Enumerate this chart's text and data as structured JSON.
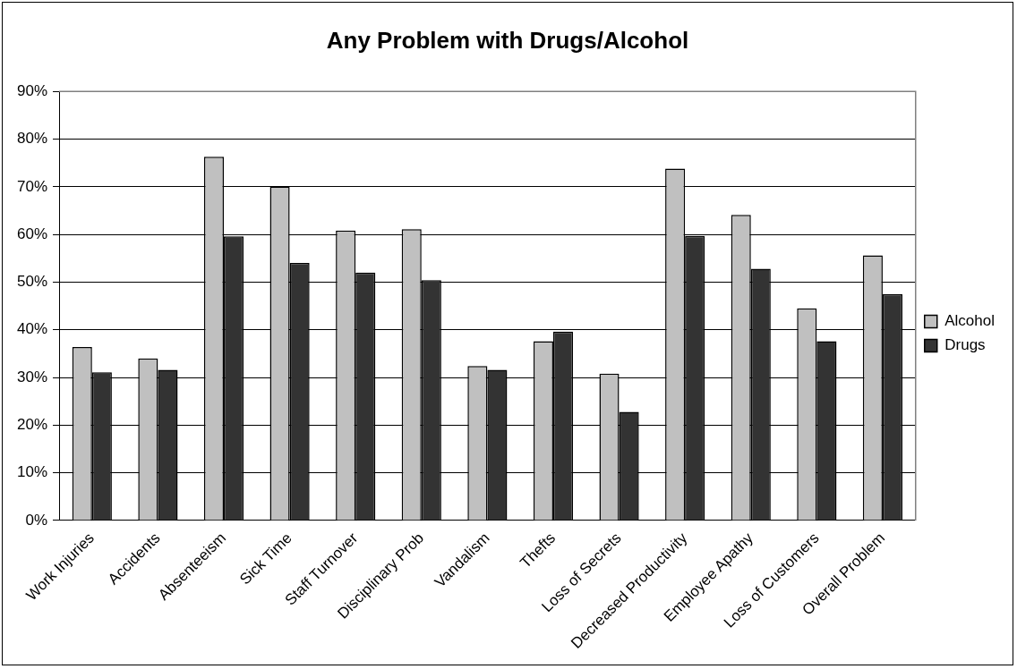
{
  "chart_data": {
    "type": "bar",
    "title": "Any Problem with Drugs/Alcohol",
    "categories": [
      "Work Injuries",
      "Accidents",
      "Absenteeism",
      "Sick Time",
      "Staff Turnover",
      "Disciplinary Prob",
      "Vandalism",
      "Thefts",
      "Loss of Secrets",
      "Decreased Productivity",
      "Employee Apathy",
      "Loss of Customers",
      "Overall Problem"
    ],
    "series": [
      {
        "name": "Alcohol",
        "color": "#c0c0c0",
        "values": [
          36.4,
          34,
          76.3,
          70,
          60.8,
          61.1,
          32.4,
          37.6,
          30.8,
          73.8,
          64.1,
          44.5,
          55.6
        ]
      },
      {
        "name": "Drugs",
        "color": "#333333",
        "values": [
          31.1,
          31.6,
          59.6,
          54,
          52,
          50.4,
          31.6,
          39.6,
          22.8,
          59.7,
          52.8,
          37.6,
          47.5
        ]
      }
    ],
    "ylim": [
      0,
      90
    ],
    "yticks": [
      {
        "value": 0,
        "label": "0%"
      },
      {
        "value": 10,
        "label": "10%"
      },
      {
        "value": 20,
        "label": "20%"
      },
      {
        "value": 30,
        "label": "30%"
      },
      {
        "value": 40,
        "label": "40%"
      },
      {
        "value": 50,
        "label": "50%"
      },
      {
        "value": 60,
        "label": "60%"
      },
      {
        "value": 70,
        "label": "70%"
      },
      {
        "value": 80,
        "label": "80%"
      },
      {
        "value": 90,
        "label": "90%"
      }
    ],
    "grid": "y",
    "legend": "right"
  }
}
